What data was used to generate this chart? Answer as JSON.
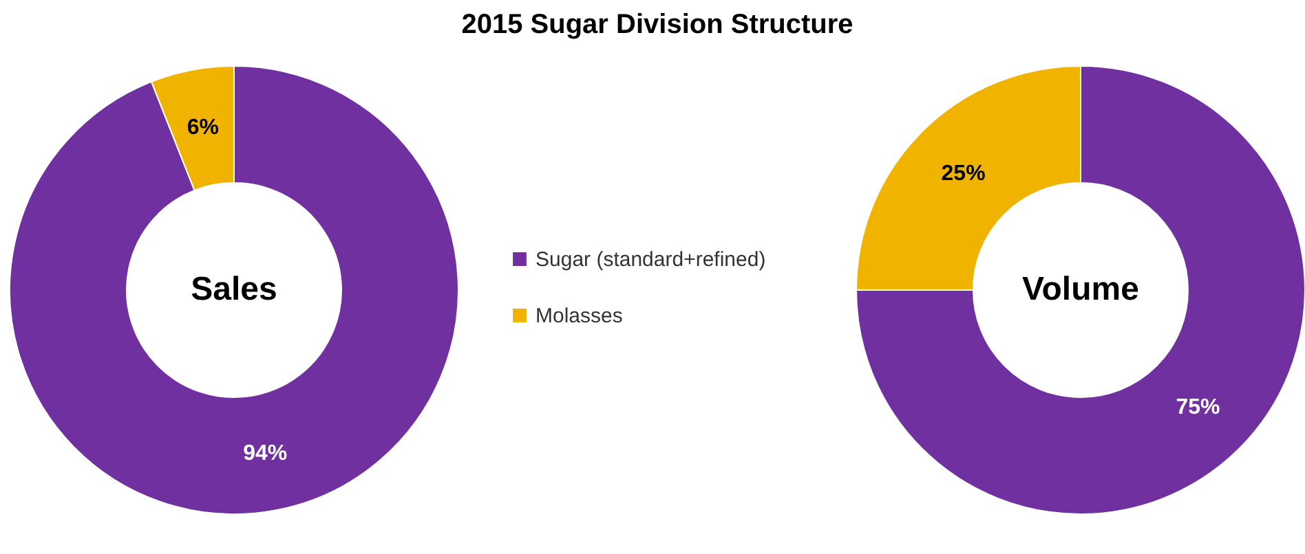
{
  "chart_data": [
    {
      "type": "donut",
      "title": "2015 Sugar Division Structure",
      "annotations": [
        "Sales"
      ],
      "categories": [
        "Sugar (standard+refined)",
        "Molasses"
      ],
      "values": [
        94,
        6
      ],
      "value_labels": [
        "94%",
        "6%"
      ],
      "colors": [
        "#7030a0",
        "#f0b400"
      ],
      "legend": "right"
    },
    {
      "type": "donut",
      "annotations": [
        "Volume"
      ],
      "categories": [
        null,
        null
      ],
      "values": [
        75,
        25
      ],
      "value_labels": [
        "75%",
        "25%"
      ],
      "colors": [
        "#7030a0",
        "#f0b400"
      ],
      "legend": false
    }
  ]
}
